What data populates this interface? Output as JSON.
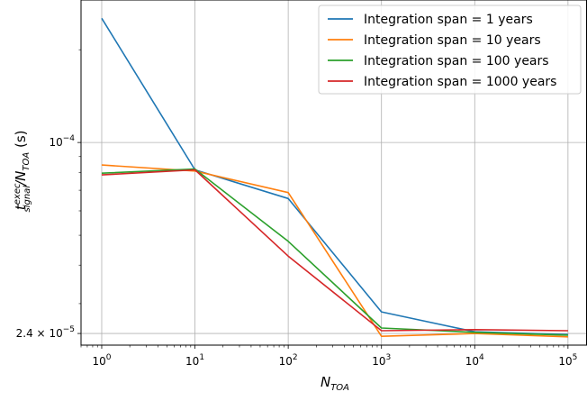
{
  "chart_data": {
    "type": "line",
    "title": "",
    "xscale": "log",
    "yscale": "log",
    "xlim": [
      0.6,
      160000
    ],
    "ylim": [
      2.2e-05,
      0.00029
    ],
    "grid": true,
    "legend_position": "top-right",
    "xticks": [
      {
        "value": 1,
        "base": "10",
        "exp": "0"
      },
      {
        "value": 10,
        "base": "10",
        "exp": "1"
      },
      {
        "value": 100,
        "base": "10",
        "exp": "2"
      },
      {
        "value": 1000,
        "base": "10",
        "exp": "3"
      },
      {
        "value": 10000,
        "base": "10",
        "exp": "4"
      },
      {
        "value": 100000,
        "base": "10",
        "exp": "5"
      }
    ],
    "yticks": [
      {
        "value": 0.0001,
        "label_base": "10",
        "label_exp": "−4",
        "label_mant": ""
      },
      {
        "value": 2.4e-05,
        "label_base": "10",
        "label_exp": "−5",
        "label_mant": "2.4 × "
      }
    ],
    "xlabel": {
      "main": "N",
      "sub": "TOA"
    },
    "ylabel": {
      "t": "t",
      "sup": "exec",
      "sub": "signal",
      "mid": "/N",
      "sub2": "TOA",
      "unit": " (s)"
    },
    "x": [
      1,
      10,
      100,
      1000,
      10000,
      100000
    ],
    "series": [
      {
        "name": "Integration span = 1 years",
        "color": "#1f77b4",
        "values": [
          0.000253,
          8.15e-05,
          6.58e-05,
          2.82e-05,
          2.43e-05,
          2.38e-05
        ]
      },
      {
        "name": "Integration span = 10 years",
        "color": "#ff7f0e",
        "values": [
          8.45e-05,
          8.08e-05,
          6.88e-05,
          2.35e-05,
          2.4e-05,
          2.34e-05
        ]
      },
      {
        "name": "Integration span = 100 years",
        "color": "#2ca02c",
        "values": [
          7.95e-05,
          8.2e-05,
          4.78e-05,
          2.5e-05,
          2.42e-05,
          2.37e-05
        ]
      },
      {
        "name": "Integration span = 1000 years",
        "color": "#d62728",
        "values": [
          7.85e-05,
          8.15e-05,
          4.28e-05,
          2.45e-05,
          2.47e-05,
          2.45e-05
        ]
      }
    ]
  }
}
